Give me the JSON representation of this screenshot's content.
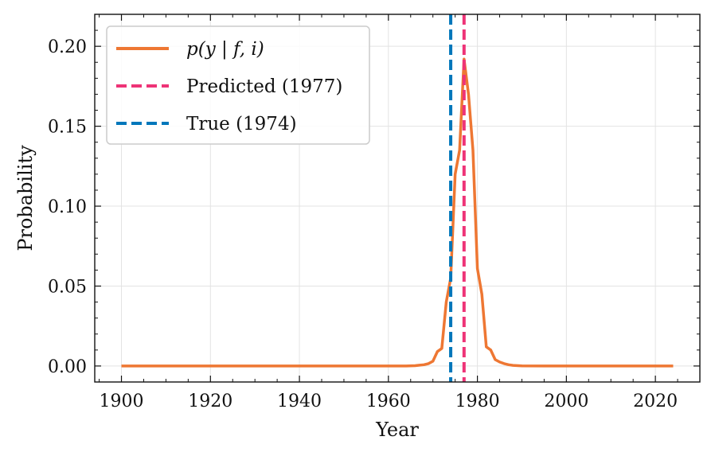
{
  "chart_data": {
    "type": "line",
    "title": "",
    "xlabel": "Year",
    "ylabel": "Probability",
    "xlim": [
      1894,
      2030
    ],
    "ylim": [
      -0.01,
      0.22
    ],
    "xticks": [
      1900,
      1920,
      1940,
      1960,
      1980,
      2000,
      2020
    ],
    "xtick_labels": [
      "1900",
      "1920",
      "1940",
      "1960",
      "1980",
      "2000",
      "2020"
    ],
    "yticks": [
      0.0,
      0.05,
      0.1,
      0.15,
      0.2
    ],
    "ytick_labels": [
      "0.00",
      "0.05",
      "0.10",
      "0.15",
      "0.20"
    ],
    "grid": true,
    "legend_position": "top-left",
    "series": [
      {
        "name": "p(y | f, i)",
        "color": "#ee7733",
        "x": [
          1900,
          1960,
          1964,
          1966,
          1967,
          1968,
          1969,
          1970,
          1971,
          1972,
          1973,
          1974,
          1975,
          1976,
          1977,
          1978,
          1979,
          1980,
          1981,
          1982,
          1983,
          1984,
          1985,
          1986,
          1987,
          1988,
          1990,
          1995,
          2024
        ],
        "y": [
          0.0,
          0.0,
          0.0,
          0.0002,
          0.0005,
          0.0008,
          0.0015,
          0.003,
          0.009,
          0.011,
          0.04,
          0.055,
          0.12,
          0.135,
          0.192,
          0.17,
          0.135,
          0.061,
          0.045,
          0.012,
          0.01,
          0.004,
          0.0025,
          0.0015,
          0.0008,
          0.0004,
          0.0001,
          0.0,
          0.0
        ]
      }
    ],
    "vlines": [
      {
        "name": "Predicted (1977)",
        "x": 1977,
        "color": "#ee3377",
        "style": "dashed"
      },
      {
        "name": "True (1974)",
        "x": 1974,
        "color": "#0077bb",
        "style": "dashed"
      }
    ],
    "legend": [
      {
        "label": "p(y | f, i)",
        "color": "#ee7733",
        "style": "solid",
        "math": true
      },
      {
        "label": "Predicted (1977)",
        "color": "#ee3377",
        "style": "dashed",
        "math": false
      },
      {
        "label": "True (1974)",
        "color": "#0077bb",
        "style": "dashed",
        "math": false
      }
    ]
  }
}
